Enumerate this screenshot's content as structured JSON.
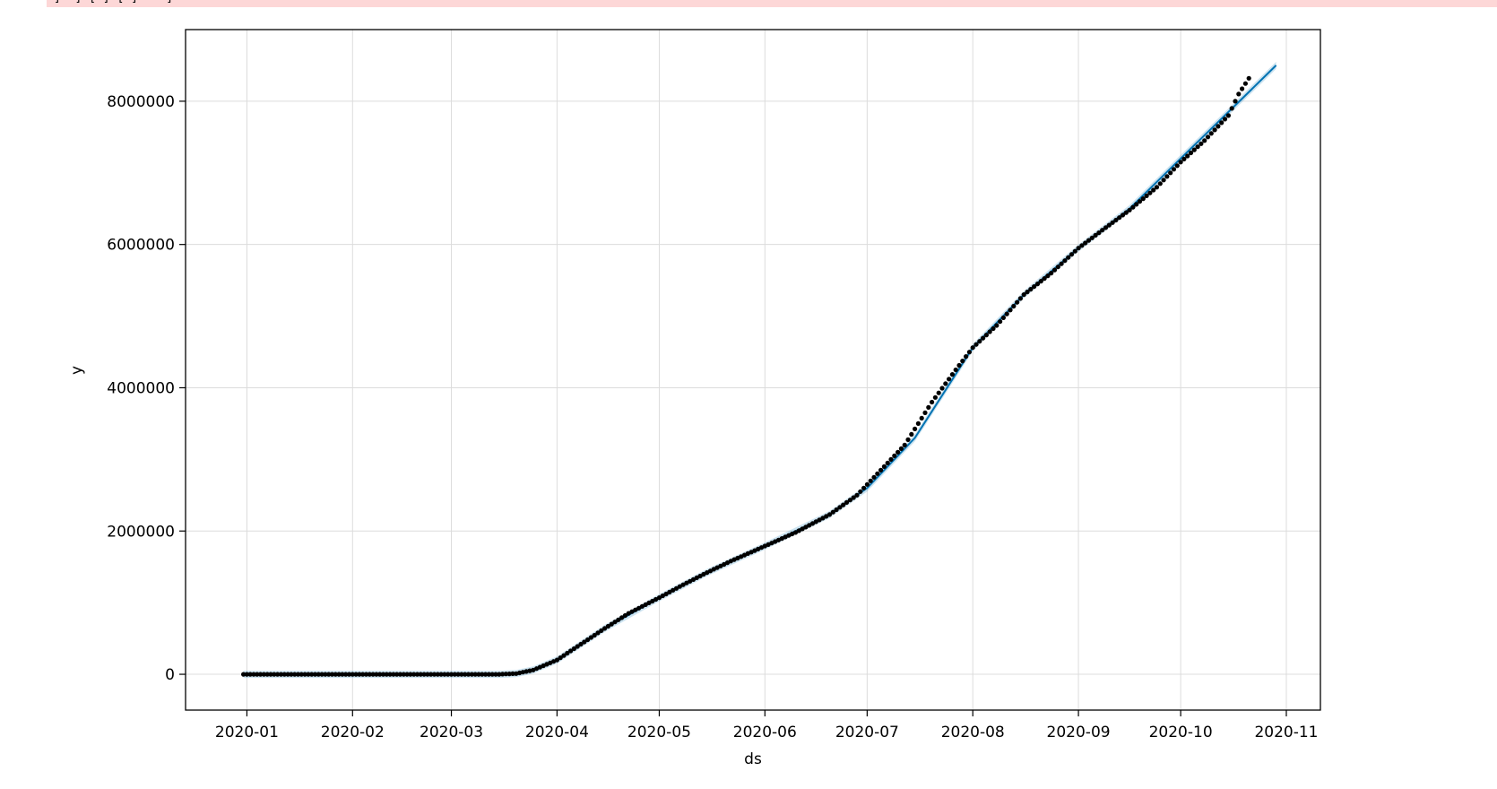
{
  "output_prefix": "]  ] [ ] [ ]    ]",
  "chart_data": {
    "type": "line",
    "xlabel": "ds",
    "ylabel": "y",
    "xlim": [
      "2019-12-14",
      "2020-11-11"
    ],
    "ylim": [
      -500000,
      9000000
    ],
    "x_ticks": [
      "2020-01",
      "2020-02",
      "2020-03",
      "2020-04",
      "2020-05",
      "2020-06",
      "2020-07",
      "2020-08",
      "2020-09",
      "2020-10",
      "2020-11"
    ],
    "y_ticks": [
      "0",
      "2000000",
      "4000000",
      "6000000",
      "8000000"
    ],
    "y_tick_values": [
      0,
      2000000,
      4000000,
      6000000,
      8000000
    ],
    "grid": true,
    "forecast_end": "2020-10-29",
    "series": [
      {
        "kind": "observed points",
        "color": "#000000",
        "x": [
          "2019-12-31",
          "2020-01-15",
          "2020-02-01",
          "2020-02-15",
          "2020-03-01",
          "2020-03-15",
          "2020-03-20",
          "2020-03-25",
          "2020-04-01",
          "2020-04-08",
          "2020-04-15",
          "2020-04-22",
          "2020-05-01",
          "2020-05-08",
          "2020-05-15",
          "2020-05-22",
          "2020-06-01",
          "2020-06-10",
          "2020-06-20",
          "2020-06-28",
          "2020-07-05",
          "2020-07-12",
          "2020-07-20",
          "2020-07-27",
          "2020-08-01",
          "2020-08-08",
          "2020-08-16",
          "2020-08-24",
          "2020-09-01",
          "2020-09-08",
          "2020-09-16",
          "2020-09-24",
          "2020-10-01",
          "2020-10-08",
          "2020-10-15",
          "2020-10-18",
          "2020-10-21"
        ],
        "y": [
          0,
          0,
          0,
          0,
          0,
          0,
          10000,
          60000,
          200000,
          420000,
          640000,
          850000,
          1070000,
          1250000,
          1420000,
          1580000,
          1790000,
          1980000,
          2230000,
          2500000,
          2850000,
          3200000,
          3800000,
          4250000,
          4560000,
          4870000,
          5300000,
          5600000,
          5950000,
          6200000,
          6480000,
          6800000,
          7150000,
          7450000,
          7800000,
          8100000,
          8320000
        ]
      },
      {
        "kind": "forecast line",
        "color": "#0072b2",
        "x": [
          "2019-12-31",
          "2020-03-15",
          "2020-03-20",
          "2020-03-25",
          "2020-04-01",
          "2020-04-15",
          "2020-05-01",
          "2020-05-15",
          "2020-06-01",
          "2020-06-20",
          "2020-07-01",
          "2020-07-15",
          "2020-08-01",
          "2020-08-16",
          "2020-09-01",
          "2020-09-16",
          "2020-10-01",
          "2020-10-15",
          "2020-10-29"
        ],
        "y": [
          0,
          0,
          10000,
          60000,
          200000,
          640000,
          1070000,
          1420000,
          1790000,
          2230000,
          2600000,
          3300000,
          4560000,
          5300000,
          5950000,
          6500000,
          7200000,
          7850000,
          8500000
        ]
      }
    ]
  }
}
